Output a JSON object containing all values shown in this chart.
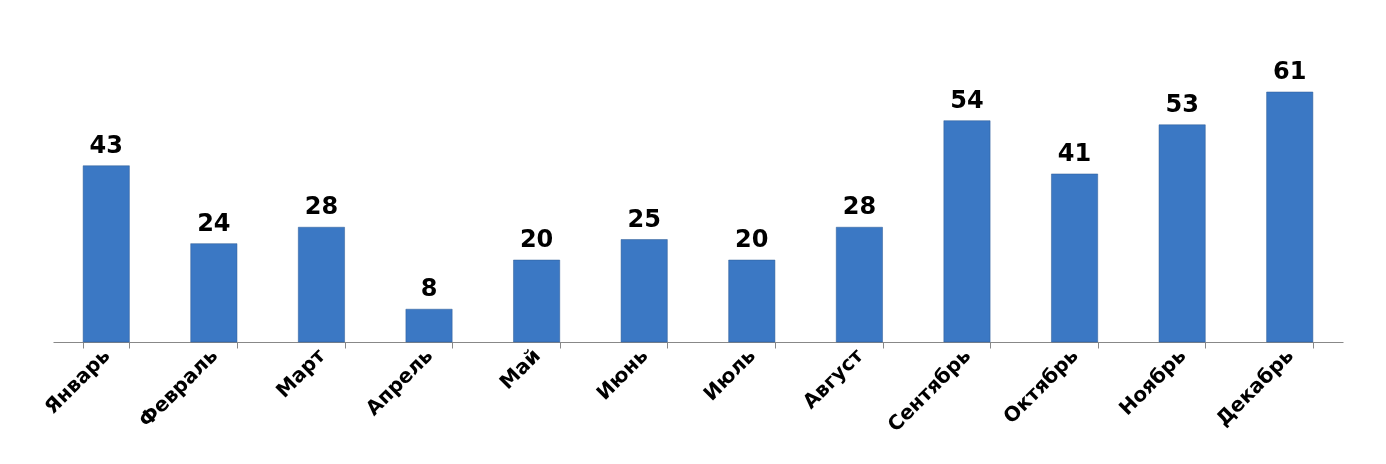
{
  "chart_data": {
    "type": "bar",
    "categories": [
      "Январь",
      "Февраль",
      "Март",
      "Апрель",
      "Май",
      "Июнь",
      "Июль",
      "Август",
      "Сентябрь",
      "Октябрь",
      "Ноябрь",
      "Декабрь"
    ],
    "values": [
      43,
      24,
      28,
      8,
      20,
      25,
      20,
      28,
      54,
      41,
      53,
      61
    ],
    "color": "#3b78c4",
    "data_labels": true
  }
}
